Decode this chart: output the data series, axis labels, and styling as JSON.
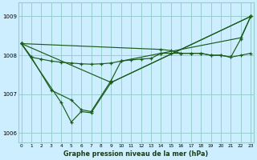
{
  "title": "Graphe pression niveau de la mer (hPa)",
  "bg_color": "#cceeff",
  "grid_color": "#99cccc",
  "line_color": "#1a5c1a",
  "ylim": [
    1005.75,
    1009.35
  ],
  "xlim": [
    -0.3,
    23.3
  ],
  "yticks": [
    1006,
    1007,
    1008,
    1009
  ],
  "xticks": [
    0,
    1,
    2,
    3,
    4,
    5,
    6,
    7,
    8,
    9,
    10,
    11,
    12,
    13,
    14,
    15,
    16,
    17,
    18,
    19,
    20,
    21,
    22,
    23
  ],
  "line1_x": [
    0,
    1,
    2,
    3,
    4,
    5,
    6,
    7,
    8,
    9,
    10,
    11,
    12,
    13,
    14,
    15,
    16,
    17,
    18,
    19,
    20,
    21,
    22,
    23
  ],
  "line1_y": [
    1008.3,
    1007.95,
    1007.9,
    1007.85,
    1007.82,
    1007.8,
    1007.78,
    1007.77,
    1007.78,
    1007.8,
    1007.85,
    1007.88,
    1007.9,
    1007.92,
    1008.05,
    1008.05,
    1008.05,
    1008.05,
    1008.05,
    1008.0,
    1008.0,
    1007.95,
    1008.0,
    1008.05
  ],
  "line2_x": [
    0,
    1,
    3,
    5,
    6,
    7,
    9,
    10,
    14,
    22,
    23
  ],
  "line2_y": [
    1008.3,
    1007.95,
    1007.1,
    1006.85,
    1006.6,
    1006.55,
    1007.35,
    1007.85,
    1008.05,
    1008.45,
    1009.0
  ],
  "line3_x": [
    0,
    4,
    5,
    6,
    7,
    9,
    23
  ],
  "line3_y": [
    1008.3,
    1006.78,
    1006.28,
    1006.55,
    1006.52,
    1007.3,
    1009.0
  ],
  "line4_x": [
    0,
    9,
    23
  ],
  "line4_y": [
    1008.3,
    1007.3,
    1009.0
  ],
  "line5_x": [
    0,
    14,
    15,
    16,
    17,
    18,
    19,
    20,
    21,
    22,
    23
  ],
  "line5_y": [
    1008.3,
    1008.15,
    1008.12,
    1008.05,
    1008.05,
    1008.05,
    1008.0,
    1008.0,
    1007.95,
    1008.42,
    1009.0
  ]
}
